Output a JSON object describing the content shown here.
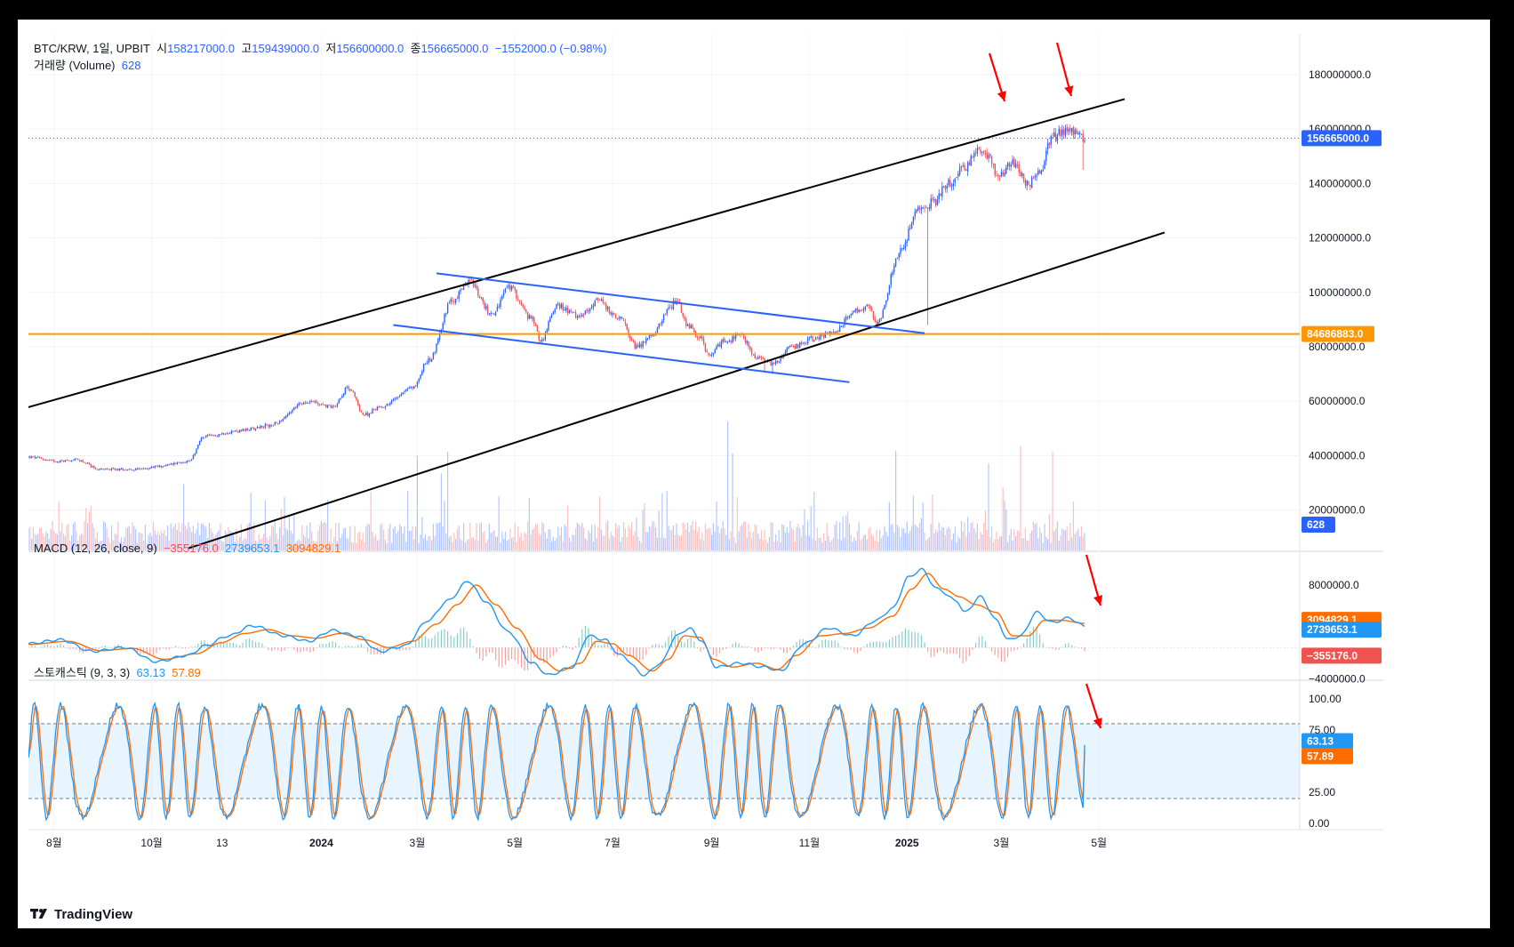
{
  "header": {
    "symbol": "BTC/KRW, 1일, UPBIT",
    "open_label": "시",
    "open": "158217000.0",
    "high_label": "고",
    "high": "159439000.0",
    "low_label": "저",
    "low": "156600000.0",
    "close_label": "종",
    "close": "156665000.0",
    "change": "−1552000.0 (−0.98%)",
    "volume_label": "거래량 (Volume)",
    "volume": "628"
  },
  "macd": {
    "label": "MACD (12, 26, close, 9)",
    "hist": "−355176.0",
    "macd": "2739653.1",
    "signal": "3094829.1"
  },
  "stoch": {
    "label": "스토캐스틱 (9, 3, 3)",
    "k": "63.13",
    "d": "57.89"
  },
  "price_tag": "156665000.0",
  "level_tag": "84686883.0",
  "volume_tag": "628",
  "brand": "TradingView",
  "colors": {
    "up": "#26a69a",
    "down": "#ef5350",
    "blue": "#2962ff",
    "orange": "#ff9800",
    "macd": "#2196f3",
    "signal": "#ff6d00"
  },
  "chart_data": [
    {
      "type": "candlestick",
      "title": "BTC/KRW, 1일, UPBIT",
      "x_ticks": [
        "8월",
        "10월",
        "13",
        "2024",
        "3월",
        "5월",
        "7월",
        "9월",
        "11월",
        "2025",
        "3월",
        "5월"
      ],
      "x_tick_days": [
        16,
        77,
        121,
        183,
        243,
        304,
        365,
        427,
        488,
        549,
        608,
        669
      ],
      "y_ticks": [
        "180000000.0",
        "160000000.0",
        "140000000.0",
        "120000000.0",
        "100000000.0",
        "80000000.0",
        "60000000.0",
        "40000000.0",
        "20000000.0"
      ],
      "y_tick_values": [
        180000000,
        160000000,
        140000000,
        120000000,
        100000000,
        80000000,
        60000000,
        40000000,
        20000000
      ],
      "ylim": [
        0,
        195000000
      ],
      "price_anchors": [
        [
          0,
          39.5
        ],
        [
          18,
          38
        ],
        [
          30,
          38.5
        ],
        [
          45,
          35
        ],
        [
          70,
          35
        ],
        [
          80,
          36
        ],
        [
          100,
          38
        ],
        [
          110,
          47
        ],
        [
          130,
          49
        ],
        [
          150,
          51
        ],
        [
          175,
          60
        ],
        [
          190,
          58
        ],
        [
          200,
          65
        ],
        [
          210,
          55
        ],
        [
          220,
          58
        ],
        [
          240,
          65
        ],
        [
          250,
          75
        ],
        [
          265,
          97
        ],
        [
          275,
          104
        ],
        [
          290,
          92
        ],
        [
          300,
          102
        ],
        [
          315,
          90
        ],
        [
          320,
          82
        ],
        [
          330,
          95
        ],
        [
          345,
          91
        ],
        [
          355,
          97
        ],
        [
          370,
          90
        ],
        [
          380,
          80
        ],
        [
          390,
          84
        ],
        [
          400,
          94
        ],
        [
          405,
          97
        ],
        [
          412,
          88
        ],
        [
          420,
          83
        ],
        [
          425,
          77
        ],
        [
          435,
          82
        ],
        [
          445,
          84
        ],
        [
          455,
          76
        ],
        [
          465,
          74
        ],
        [
          478,
          80
        ],
        [
          490,
          83
        ],
        [
          505,
          86
        ],
        [
          515,
          93
        ],
        [
          525,
          95
        ],
        [
          530,
          88
        ],
        [
          545,
          115
        ],
        [
          555,
          130
        ],
        [
          565,
          133
        ],
        [
          575,
          140
        ],
        [
          585,
          146
        ],
        [
          595,
          153
        ],
        [
          600,
          150
        ],
        [
          605,
          143
        ],
        [
          615,
          148
        ],
        [
          625,
          140
        ],
        [
          632,
          145
        ],
        [
          640,
          157
        ],
        [
          648,
          160
        ],
        [
          655,
          158
        ],
        [
          660,
          157
        ]
      ],
      "trendlines": [
        {
          "name": "upper channel",
          "color": "black",
          "points": [
            [
              -5,
              57
            ],
            [
              685,
              171
            ]
          ]
        },
        {
          "name": "lower channel",
          "color": "black",
          "points": [
            [
              100,
              6
            ],
            [
              710,
              122
            ]
          ]
        },
        {
          "name": "falling wedge top",
          "color": "blue",
          "points": [
            [
              255,
              107
            ],
            [
              560,
              85
            ]
          ]
        },
        {
          "name": "falling wedge bottom",
          "color": "blue",
          "points": [
            [
              228,
              88
            ],
            [
              513,
              67
            ]
          ]
        }
      ],
      "horizontal_level": 84686883.0,
      "last_price": 156665000.0
    },
    {
      "type": "line",
      "title": "MACD (12, 26, close, 9)",
      "y_ticks": [
        "8000000.0",
        "−4000000.0"
      ],
      "y_tick_values": [
        8000000,
        -4000000
      ],
      "ylim": [
        -4500000,
        11500000
      ],
      "series": [
        {
          "name": "MACD",
          "anchors": [
            [
              0,
              0.5
            ],
            [
              20,
              1.0
            ],
            [
              40,
              -0.5
            ],
            [
              60,
              0
            ],
            [
              80,
              -1.8
            ],
            [
              100,
              -1.0
            ],
            [
              110,
              0.2
            ],
            [
              125,
              1.5
            ],
            [
              140,
              2.8
            ],
            [
              160,
              1.5
            ],
            [
              175,
              0.8
            ],
            [
              190,
              2.2
            ],
            [
              205,
              1.5
            ],
            [
              220,
              -0.5
            ],
            [
              235,
              0.2
            ],
            [
              250,
              3.5
            ],
            [
              262,
              6.0
            ],
            [
              275,
              8.5
            ],
            [
              285,
              6.0
            ],
            [
              300,
              2.0
            ],
            [
              315,
              -2.0
            ],
            [
              325,
              -3.5
            ],
            [
              340,
              -2.5
            ],
            [
              350,
              1.5
            ],
            [
              360,
              1.0
            ],
            [
              370,
              -1.0
            ],
            [
              385,
              -3.5
            ],
            [
              395,
              -2.0
            ],
            [
              405,
              1.5
            ],
            [
              413,
              2.5
            ],
            [
              420,
              1.0
            ],
            [
              430,
              -2.5
            ],
            [
              445,
              -2.0
            ],
            [
              460,
              -2.5
            ],
            [
              470,
              -3.0
            ],
            [
              485,
              0.5
            ],
            [
              500,
              2.5
            ],
            [
              515,
              1.5
            ],
            [
              530,
              3.5
            ],
            [
              540,
              5.0
            ],
            [
              550,
              9.0
            ],
            [
              558,
              10.0
            ],
            [
              568,
              7.5
            ],
            [
              580,
              6.0
            ],
            [
              585,
              4.5
            ],
            [
              595,
              6.5
            ],
            [
              605,
              3.5
            ],
            [
              612,
              1.0
            ],
            [
              620,
              1.5
            ],
            [
              630,
              4.5
            ],
            [
              640,
              3.2
            ],
            [
              650,
              3.8
            ],
            [
              660,
              2.74
            ]
          ]
        },
        {
          "name": "Signal",
          "anchors": [
            [
              0,
              0.4
            ],
            [
              25,
              0.8
            ],
            [
              45,
              -0.4
            ],
            [
              65,
              -0.1
            ],
            [
              85,
              -1.5
            ],
            [
              105,
              -0.8
            ],
            [
              120,
              0.6
            ],
            [
              135,
              1.8
            ],
            [
              150,
              2.3
            ],
            [
              165,
              1.5
            ],
            [
              180,
              1.2
            ],
            [
              195,
              1.8
            ],
            [
              210,
              1.0
            ],
            [
              225,
              0
            ],
            [
              240,
              0.8
            ],
            [
              255,
              3.0
            ],
            [
              268,
              5.5
            ],
            [
              280,
              8.0
            ],
            [
              292,
              5.5
            ],
            [
              305,
              2.5
            ],
            [
              320,
              -1.5
            ],
            [
              332,
              -3.0
            ],
            [
              345,
              -2.0
            ],
            [
              355,
              0.8
            ],
            [
              365,
              0.5
            ],
            [
              375,
              -1.0
            ],
            [
              390,
              -3.0
            ],
            [
              400,
              -1.5
            ],
            [
              410,
              1.5
            ],
            [
              420,
              1.3
            ],
            [
              428,
              -1.5
            ],
            [
              440,
              -2.5
            ],
            [
              455,
              -2.0
            ],
            [
              468,
              -2.8
            ],
            [
              480,
              -1.0
            ],
            [
              495,
              1.5
            ],
            [
              510,
              1.8
            ],
            [
              525,
              2.5
            ],
            [
              540,
              4.0
            ],
            [
              552,
              7.5
            ],
            [
              562,
              9.5
            ],
            [
              572,
              7.5
            ],
            [
              582,
              6.5
            ],
            [
              592,
              5.5
            ],
            [
              605,
              4.5
            ],
            [
              615,
              1.5
            ],
            [
              625,
              1.5
            ],
            [
              635,
              3.5
            ],
            [
              645,
              3.5
            ],
            [
              660,
              3.09
            ]
          ]
        }
      ],
      "last_values": {
        "hist": -355176.0,
        "macd": 2739653.1,
        "signal": 3094829.1
      }
    },
    {
      "type": "line",
      "title": "스토캐스틱 (9, 3, 3)",
      "y_ticks": [
        "100.00",
        "75.00",
        "25.00",
        "0.00"
      ],
      "y_tick_values": [
        100,
        75,
        25,
        0
      ],
      "ylim": [
        -4,
        106
      ],
      "bands": [
        20,
        80
      ],
      "series": [
        {
          "name": "%K",
          "color": "#2196f3",
          "last": 63.13
        },
        {
          "name": "%D",
          "color": "#ff6d00",
          "last": 57.89
        }
      ]
    }
  ]
}
